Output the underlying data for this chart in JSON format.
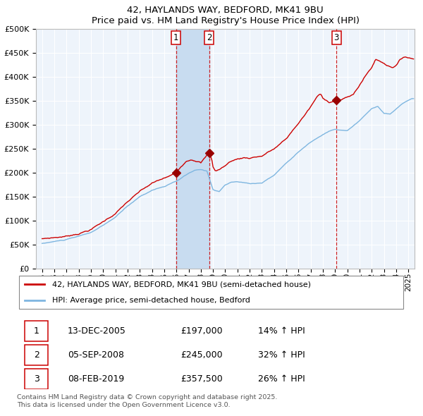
{
  "title_line1": "42, HAYLANDS WAY, BEDFORD, MK41 9BU",
  "title_line2": "Price paid vs. HM Land Registry's House Price Index (HPI)",
  "legend_line1": "42, HAYLANDS WAY, BEDFORD, MK41 9BU (semi-detached house)",
  "legend_line2": "HPI: Average price, semi-detached house, Bedford",
  "footer": "Contains HM Land Registry data © Crown copyright and database right 2025.\nThis data is licensed under the Open Government Licence v3.0.",
  "transactions": [
    {
      "num": 1,
      "date": "13-DEC-2005",
      "price": 197000,
      "hpi_pct": "14% ↑ HPI",
      "x_year": 2005.96
    },
    {
      "num": 2,
      "date": "05-SEP-2008",
      "price": 245000,
      "hpi_pct": "32% ↑ HPI",
      "x_year": 2008.68
    },
    {
      "num": 3,
      "date": "08-FEB-2019",
      "price": 357500,
      "hpi_pct": "26% ↑ HPI",
      "x_year": 2019.11
    }
  ],
  "ylim": [
    0,
    500000
  ],
  "yticks": [
    0,
    50000,
    100000,
    150000,
    200000,
    250000,
    300000,
    350000,
    400000,
    450000,
    500000
  ],
  "xlim_start": 1994.5,
  "xlim_end": 2025.5,
  "background_color": "#ffffff",
  "plot_bg_color": "#EEF4FB",
  "grid_color": "#ffffff",
  "red_line_color": "#CC0000",
  "blue_line_color": "#7EB6E0",
  "dashed_line_color": "#CC0000",
  "shade_color": "#C8DCF0",
  "marker_color": "#990000",
  "box_color": "#CC0000",
  "hpi_waypoints": [
    [
      1994.5,
      50000
    ],
    [
      1995.0,
      52000
    ],
    [
      1996.0,
      56000
    ],
    [
      1997.0,
      60000
    ],
    [
      1998.0,
      66000
    ],
    [
      1999.0,
      74000
    ],
    [
      2000.0,
      88000
    ],
    [
      2001.0,
      105000
    ],
    [
      2002.0,
      128000
    ],
    [
      2003.0,
      148000
    ],
    [
      2004.0,
      162000
    ],
    [
      2005.0,
      170000
    ],
    [
      2006.0,
      180000
    ],
    [
      2007.0,
      196000
    ],
    [
      2007.5,
      202000
    ],
    [
      2008.0,
      203000
    ],
    [
      2008.5,
      200000
    ],
    [
      2009.0,
      162000
    ],
    [
      2009.5,
      158000
    ],
    [
      2010.0,
      172000
    ],
    [
      2010.5,
      177000
    ],
    [
      2011.0,
      178000
    ],
    [
      2012.0,
      174000
    ],
    [
      2013.0,
      176000
    ],
    [
      2014.0,
      192000
    ],
    [
      2015.0,
      218000
    ],
    [
      2016.0,
      242000
    ],
    [
      2017.0,
      262000
    ],
    [
      2018.0,
      278000
    ],
    [
      2018.5,
      285000
    ],
    [
      2019.0,
      288000
    ],
    [
      2020.0,
      285000
    ],
    [
      2021.0,
      305000
    ],
    [
      2022.0,
      330000
    ],
    [
      2022.5,
      335000
    ],
    [
      2023.0,
      320000
    ],
    [
      2023.5,
      318000
    ],
    [
      2024.0,
      328000
    ],
    [
      2024.5,
      340000
    ],
    [
      2025.3,
      350000
    ]
  ],
  "prop_waypoints": [
    [
      1994.5,
      60000
    ],
    [
      1995.0,
      62000
    ],
    [
      1996.0,
      65000
    ],
    [
      1997.0,
      68000
    ],
    [
      1998.0,
      75000
    ],
    [
      1999.0,
      84000
    ],
    [
      2000.0,
      100000
    ],
    [
      2001.0,
      118000
    ],
    [
      2002.0,
      142000
    ],
    [
      2003.0,
      162000
    ],
    [
      2004.0,
      178000
    ],
    [
      2005.0,
      188000
    ],
    [
      2005.96,
      197000
    ],
    [
      2006.3,
      210000
    ],
    [
      2006.8,
      225000
    ],
    [
      2007.2,
      230000
    ],
    [
      2007.8,
      228000
    ],
    [
      2008.0,
      225000
    ],
    [
      2008.68,
      245000
    ],
    [
      2008.9,
      230000
    ],
    [
      2009.0,
      215000
    ],
    [
      2009.2,
      207000
    ],
    [
      2009.5,
      210000
    ],
    [
      2010.0,
      218000
    ],
    [
      2010.5,
      228000
    ],
    [
      2011.0,
      232000
    ],
    [
      2011.5,
      235000
    ],
    [
      2012.0,
      235000
    ],
    [
      2012.5,
      238000
    ],
    [
      2013.0,
      240000
    ],
    [
      2013.5,
      248000
    ],
    [
      2014.0,
      255000
    ],
    [
      2015.0,
      275000
    ],
    [
      2016.0,
      308000
    ],
    [
      2016.5,
      325000
    ],
    [
      2017.0,
      342000
    ],
    [
      2017.5,
      362000
    ],
    [
      2017.8,
      368000
    ],
    [
      2018.0,
      358000
    ],
    [
      2018.5,
      352000
    ],
    [
      2019.0,
      355000
    ],
    [
      2019.11,
      357500
    ],
    [
      2019.5,
      358000
    ],
    [
      2020.0,
      362000
    ],
    [
      2020.5,
      368000
    ],
    [
      2021.0,
      388000
    ],
    [
      2021.5,
      408000
    ],
    [
      2022.0,
      425000
    ],
    [
      2022.3,
      442000
    ],
    [
      2022.7,
      438000
    ],
    [
      2023.0,
      435000
    ],
    [
      2023.3,
      430000
    ],
    [
      2023.7,
      428000
    ],
    [
      2024.0,
      432000
    ],
    [
      2024.3,
      442000
    ],
    [
      2024.7,
      450000
    ],
    [
      2025.0,
      448000
    ],
    [
      2025.3,
      446000
    ]
  ]
}
